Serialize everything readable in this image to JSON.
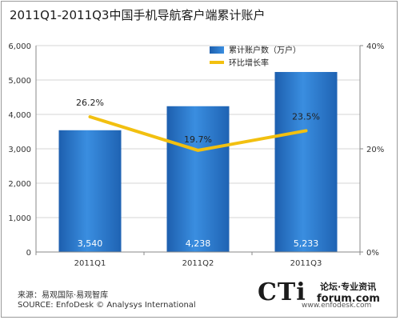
{
  "title": "2011Q1-2011Q3中国手机导航客户端累计账户",
  "footer": {
    "source_cn": "来源：易观国际·易观智库",
    "source_en": "SOURCE: EnfoDesk © Analysys International"
  },
  "watermark": {
    "logo": "CTi",
    "forum_text": "论坛·专业资讯",
    "forum_url": "forum.com",
    "site": "www.enfodesk.com"
  },
  "colors": {
    "bar": "#2f7fd0",
    "line": "#f2c010",
    "grid": "#d6d6d6",
    "axis_text": "#333333"
  },
  "chart_data": {
    "type": "bar",
    "categories": [
      "2011Q1",
      "2011Q2",
      "2011Q3"
    ],
    "series": [
      {
        "name": "累计账户数（万户）",
        "type": "bar",
        "axis": "left",
        "values": [
          3540,
          4238,
          5233
        ],
        "labels": [
          "3,540",
          "4,238",
          "5,233"
        ]
      },
      {
        "name": "环比增长率",
        "type": "line",
        "axis": "right",
        "values": [
          26.2,
          19.7,
          23.5
        ],
        "labels": [
          "26.2%",
          "19.7%",
          "23.5%"
        ]
      }
    ],
    "ylim": [
      0,
      6000
    ],
    "yticks": [
      "0",
      "1,000",
      "2,000",
      "3,000",
      "4,000",
      "5,000",
      "6,000"
    ],
    "y2lim": [
      0,
      40
    ],
    "y2ticks": [
      "0%",
      "20%",
      "40%"
    ],
    "grid": true,
    "legend_position": "top-right"
  }
}
